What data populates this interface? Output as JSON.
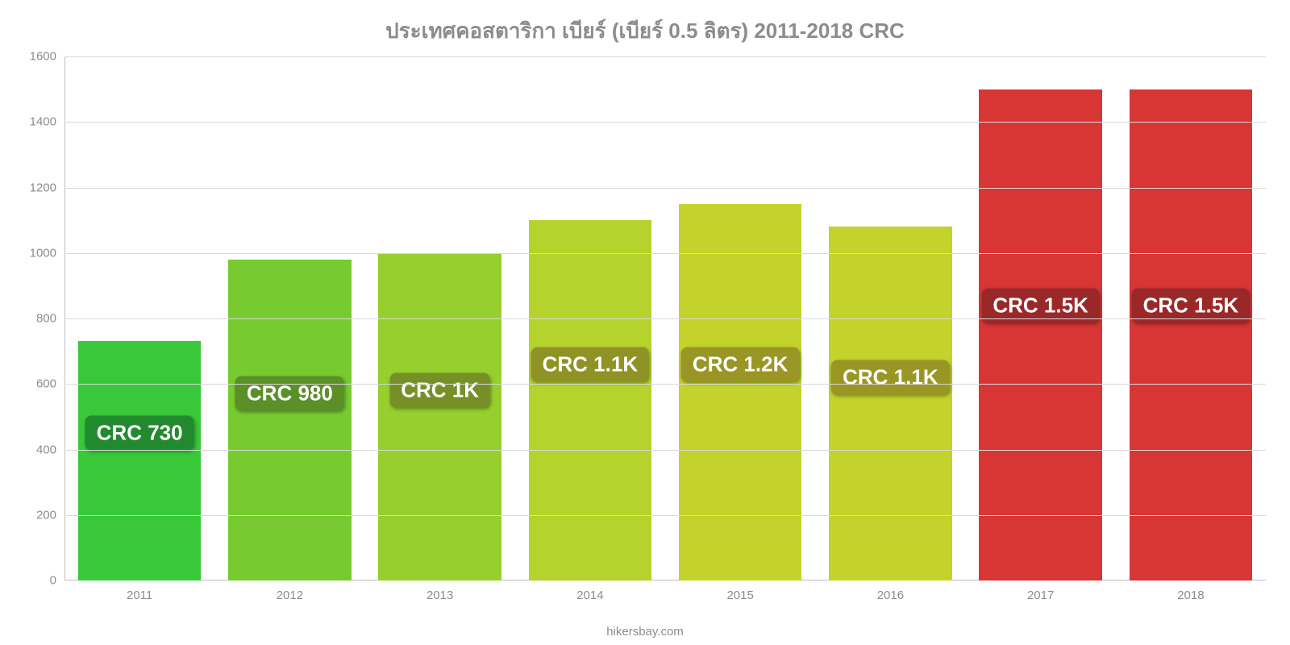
{
  "chart": {
    "type": "bar",
    "title": "ประเทศคอสตาริกา เบียร์ (เบียร์ 0.5 ลิตร) 2011-2018 CRC",
    "title_color": "#8c8c8c",
    "title_fontsize": 26,
    "background_color": "#ffffff",
    "ylim": [
      0,
      1600
    ],
    "ytick_step": 200,
    "yticks": [
      0,
      200,
      400,
      600,
      800,
      1000,
      1200,
      1400,
      1600
    ],
    "grid_color": "#d9d9d9",
    "axis_color": "#bfbfbf",
    "tick_label_color": "#8c8c8c",
    "tick_label_fontsize": 15,
    "bar_width_ratio": 0.82,
    "categories": [
      "2011",
      "2012",
      "2013",
      "2014",
      "2015",
      "2016",
      "2017",
      "2018"
    ],
    "values": [
      730,
      980,
      1000,
      1100,
      1150,
      1080,
      1500,
      1500
    ],
    "bar_colors": [
      "#39c839",
      "#77cb30",
      "#96cf2e",
      "#b6d22d",
      "#c3d32c",
      "#c3d32c",
      "#d83535",
      "#d83535"
    ],
    "value_labels": [
      "CRC 730",
      "CRC 980",
      "CRC 1K",
      "CRC 1.1K",
      "CRC 1.2K",
      "CRC 1.1K",
      "CRC 1.5K",
      "CRC 1.5K"
    ],
    "bubble_bg_colors": [
      "#228a2e",
      "#5b8f28",
      "#778f27",
      "#8f9326",
      "#999626",
      "#999626",
      "#9a2828",
      "#9a2828"
    ],
    "bubble_text_color": "#ffffff",
    "bubble_fontsize": 26,
    "bubble_y_positions": [
      450,
      570,
      580,
      660,
      660,
      620,
      840,
      840
    ],
    "watermark": "hikersbay.com",
    "watermark_color": "#8c8c8c"
  }
}
